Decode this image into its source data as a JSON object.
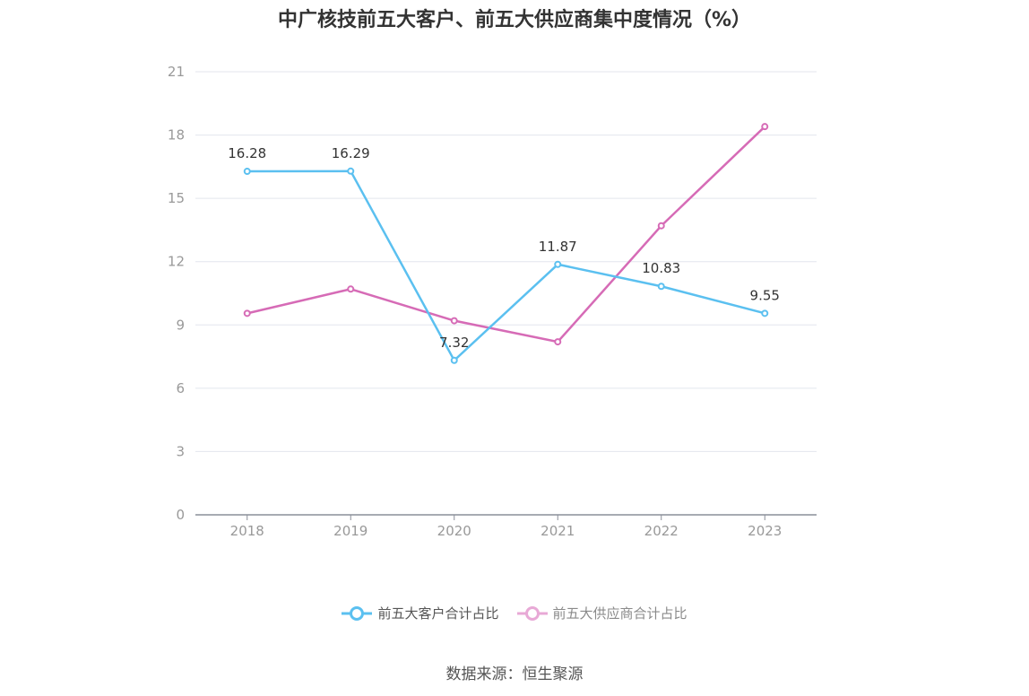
{
  "chart_data": {
    "type": "line",
    "title": "中广核技前五大客户、前五大供应商集中度情况（%）",
    "categories": [
      "2018",
      "2019",
      "2020",
      "2021",
      "2022",
      "2023"
    ],
    "ylim": [
      0,
      21
    ],
    "yticks": [
      0,
      3,
      6,
      9,
      12,
      15,
      18,
      21
    ],
    "grid": true,
    "legend_position": "bottom",
    "series": [
      {
        "name": "前五大客户合计占比",
        "color": "#5bc0f0",
        "values": [
          16.28,
          16.29,
          7.32,
          11.87,
          10.83,
          9.55
        ],
        "labels": [
          "16.28",
          "16.29",
          "7.32",
          "11.87",
          "10.83",
          "9.55"
        ]
      },
      {
        "name": "前五大供应商合计占比",
        "color": "#d66bb6",
        "values": [
          9.55,
          10.7,
          9.2,
          8.2,
          13.7,
          18.4
        ],
        "labels": []
      }
    ]
  },
  "source": "数据来源：恒生聚源"
}
